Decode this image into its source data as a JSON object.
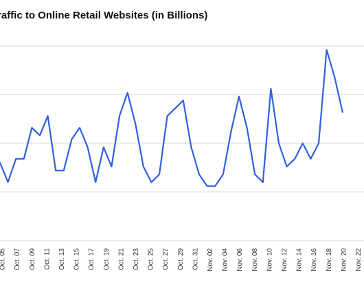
{
  "colors": {
    "line": "#2f5fe0",
    "grid": "#d9d9d9",
    "text": "#333333"
  },
  "chart_data": {
    "type": "line",
    "title": "raffic to Online Retail Websites (in Billions)",
    "xlabel": "",
    "ylabel": "",
    "grid": true,
    "legend": "none",
    "y_gridlines": 5,
    "tick_labels": [
      "Oct. 05",
      "Oct. 07",
      "Oct. 09",
      "Oct. 11",
      "Oct. 13",
      "Oct. 15",
      "Oct. 17",
      "Oct. 19",
      "Oct. 21",
      "Oct. 23",
      "Oct. 25",
      "Oct. 27",
      "Oct. 29",
      "Oct. 31",
      "Nov. 02",
      "Nov. 04",
      "Nov. 06",
      "Nov. 08",
      "Nov. 10",
      "Nov. 12",
      "Nov. 14",
      "Nov. 16",
      "Nov. 18",
      "Nov. 20",
      "Nov. 22"
    ],
    "series": [
      {
        "values": [
          2.0,
          1.5,
          2.1,
          2.1,
          2.9,
          2.7,
          3.2,
          1.8,
          1.8,
          2.6,
          2.9,
          2.4,
          1.5,
          2.4,
          1.9,
          3.2,
          3.8,
          3.0,
          1.9,
          1.5,
          1.7,
          3.2,
          3.4,
          3.6,
          2.4,
          1.7,
          1.4,
          1.4,
          1.7,
          2.8,
          3.7,
          2.9,
          1.7,
          1.5,
          3.9,
          2.5,
          1.9,
          2.1,
          2.5,
          2.1,
          2.5,
          4.9,
          4.2,
          3.3
        ]
      }
    ]
  }
}
